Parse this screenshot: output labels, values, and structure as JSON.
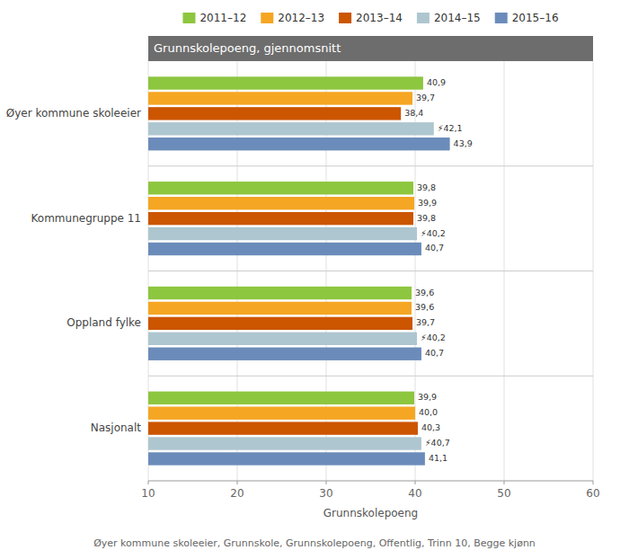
{
  "chart_data": {
    "type": "bar",
    "orientation": "horizontal",
    "title": "Grunnskolepoeng, gjennomsnitt",
    "xlabel": "Grunnskolepoeng",
    "annotations": [
      "Øyer kommune skoleeier, Grunnskole, Grunnskolepoeng, Offentlig, Trinn 10, Begge kjønn"
    ],
    "categories": [
      "Øyer kommune skoleeier",
      "Kommunegruppe 11",
      "Oppland fylke",
      "Nasjonalt"
    ],
    "series": [
      {
        "name": "2011–12",
        "color": "#8dc63f",
        "values": [
          40.9,
          39.8,
          39.6,
          39.9
        ],
        "value_labels": [
          "40,9",
          "39,8",
          "39,6",
          "39,9"
        ]
      },
      {
        "name": "2012–13",
        "color": "#f5a623",
        "values": [
          39.7,
          39.9,
          39.6,
          40.0
        ],
        "value_labels": [
          "39,7",
          "39,9",
          "39,6",
          "40,0"
        ]
      },
      {
        "name": "2013–14",
        "color": "#cc5500",
        "values": [
          38.4,
          39.8,
          39.7,
          40.3
        ],
        "value_labels": [
          "38,4",
          "39,8",
          "39,7",
          "40,3"
        ]
      },
      {
        "name": "2014–15",
        "color": "#aec6cf",
        "values": [
          42.1,
          40.2,
          40.2,
          40.7
        ],
        "value_labels": [
          "⚡42,1",
          "⚡40,2",
          "⚡40,2",
          "⚡40,7"
        ]
      },
      {
        "name": "2015–16",
        "color": "#6b8cba",
        "values": [
          43.9,
          40.7,
          40.7,
          41.1
        ],
        "value_labels": [
          "43,9",
          "40,7",
          "40,7",
          "41,1"
        ]
      }
    ],
    "xlim": [
      10,
      60
    ],
    "xticks": [
      10,
      20,
      30,
      40,
      50,
      60
    ],
    "grid": true,
    "legend": "top",
    "data_labels": true
  }
}
